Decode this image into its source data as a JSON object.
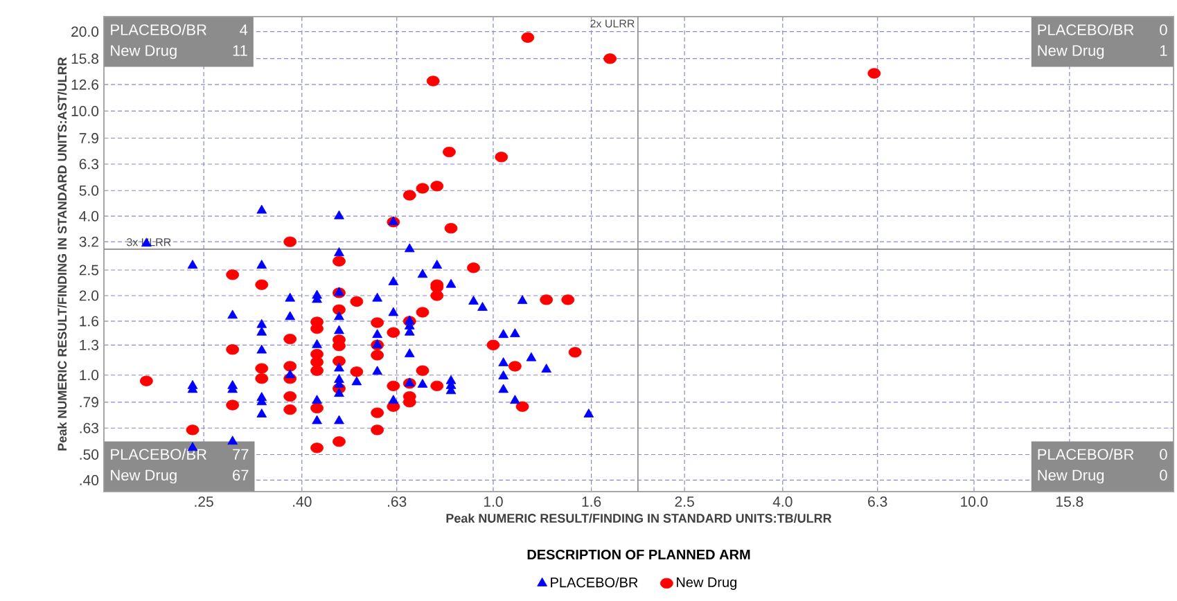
{
  "chart_data": {
    "type": "scatter",
    "xlabel": "Peak NUMERIC RESULT/FINDING IN STANDARD UNITS:TB/ULRR",
    "ylabel": "Peak NUMERIC RESULT/FINDING IN STANDARD UNITS:AST/ULRR",
    "legend_title": "DESCRIPTION OF PLANNED ARM",
    "log": "xy",
    "xlim": [
      0.155,
      26
    ],
    "ylim": [
      0.362,
      22.8
    ],
    "xticks": [
      {
        "value": 0.25,
        "label": ".25"
      },
      {
        "value": 0.4,
        "label": ".40"
      },
      {
        "value": 0.63,
        "label": ".63"
      },
      {
        "value": 1.0,
        "label": "1.0"
      },
      {
        "value": 1.6,
        "label": "1.6"
      },
      {
        "value": 2.5,
        "label": "2.5"
      },
      {
        "value": 4.0,
        "label": "4.0"
      },
      {
        "value": 6.3,
        "label": "6.3"
      },
      {
        "value": 10.0,
        "label": "10.0"
      },
      {
        "value": 15.8,
        "label": "15.8"
      }
    ],
    "yticks": [
      {
        "value": 0.4,
        "label": ".40"
      },
      {
        "value": 0.5,
        "label": ".50"
      },
      {
        "value": 0.63,
        "label": ".63"
      },
      {
        "value": 0.79,
        "label": ".79"
      },
      {
        "value": 1.0,
        "label": "1.0"
      },
      {
        "value": 1.3,
        "label": "1.3"
      },
      {
        "value": 1.6,
        "label": "1.6"
      },
      {
        "value": 2.0,
        "label": "2.0"
      },
      {
        "value": 2.5,
        "label": "2.5"
      },
      {
        "value": 3.2,
        "label": "3.2"
      },
      {
        "value": 4.0,
        "label": "4.0"
      },
      {
        "value": 5.0,
        "label": "5.0"
      },
      {
        "value": 6.3,
        "label": "6.3"
      },
      {
        "value": 7.9,
        "label": "7.9"
      },
      {
        "value": 10.0,
        "label": "10.0"
      },
      {
        "value": 12.6,
        "label": "12.6"
      },
      {
        "value": 15.8,
        "label": "15.8"
      },
      {
        "value": 20.0,
        "label": "20.0"
      }
    ],
    "grid": true,
    "legend": "bottom",
    "series": [
      {
        "name": "PLACEBO/BR",
        "color": "#0000ff",
        "marker": "triangle",
        "x": [
          0.19,
          0.237,
          0.237,
          0.237,
          0.237,
          0.287,
          0.287,
          0.287,
          0.287,
          0.33,
          0.33,
          0.33,
          0.33,
          0.33,
          0.33,
          0.33,
          0.33,
          0.378,
          0.378,
          0.378,
          0.43,
          0.43,
          0.43,
          0.43,
          0.43,
          0.478,
          0.478,
          0.478,
          0.478,
          0.478,
          0.478,
          0.478,
          0.478,
          0.478,
          0.478,
          0.52,
          0.574,
          0.574,
          0.574,
          0.574,
          0.62,
          0.62,
          0.62,
          0.62,
          0.67,
          0.67,
          0.67,
          0.67,
          0.67,
          0.67,
          0.713,
          0.713,
          0.764,
          0.817,
          0.817,
          0.817,
          0.817,
          0.91,
          0.95,
          1.05,
          1.11,
          1.15,
          1.05,
          1.05,
          1.05,
          1.11,
          1.2,
          1.29,
          1.58
        ],
        "values": [
          3.15,
          2.6,
          0.91,
          0.88,
          0.53,
          1.68,
          0.91,
          0.88,
          0.56,
          4.2,
          2.6,
          1.55,
          1.45,
          1.24,
          0.82,
          0.79,
          0.71,
          1.95,
          1.66,
          1.0,
          2.0,
          1.93,
          1.3,
          0.8,
          0.67,
          4.0,
          2.9,
          2.05,
          1.66,
          1.47,
          1.06,
          0.96,
          0.92,
          0.85,
          0.67,
          0.94,
          1.95,
          1.42,
          1.3,
          1.03,
          3.8,
          2.25,
          1.72,
          0.8,
          3.0,
          1.6,
          1.53,
          1.45,
          1.2,
          0.93,
          2.4,
          0.92,
          2.6,
          2.2,
          0.95,
          0.91,
          0.87,
          1.9,
          1.8,
          1.42,
          1.43,
          1.91,
          1.11,
          0.99,
          0.88,
          0.8,
          1.16,
          1.05,
          0.71
        ]
      },
      {
        "name": "New Drug",
        "color": "#ff0000",
        "marker": "circle",
        "x": [
          0.19,
          0.237,
          0.287,
          0.287,
          0.287,
          0.33,
          0.33,
          0.33,
          0.378,
          0.378,
          0.378,
          0.378,
          0.378,
          0.378,
          0.43,
          0.43,
          0.43,
          0.43,
          0.43,
          0.43,
          0.43,
          0.478,
          0.478,
          0.478,
          0.478,
          0.478,
          0.478,
          0.478,
          0.478,
          0.52,
          0.52,
          0.574,
          0.574,
          0.574,
          0.574,
          0.574,
          0.62,
          0.62,
          0.62,
          0.62,
          0.67,
          0.67,
          0.67,
          0.67,
          0.67,
          0.713,
          0.713,
          0.713,
          0.764,
          0.764,
          0.764,
          0.764,
          0.764,
          0.817,
          0.91,
          1.0,
          1.11,
          1.15,
          1.29,
          1.43,
          1.48,
          0.81,
          1.04,
          0.75,
          1.18,
          1.75,
          6.2
        ],
        "values": [
          0.95,
          0.62,
          2.4,
          1.25,
          0.77,
          2.2,
          1.06,
          0.97,
          3.2,
          1.37,
          1.08,
          0.97,
          0.83,
          0.74,
          1.59,
          1.5,
          1.2,
          1.12,
          1.04,
          0.75,
          0.53,
          2.7,
          2.05,
          1.77,
          1.36,
          1.29,
          1.13,
          0.89,
          0.56,
          1.9,
          1.03,
          1.58,
          1.3,
          1.19,
          0.72,
          0.62,
          3.8,
          1.45,
          0.91,
          0.76,
          4.8,
          1.6,
          0.93,
          0.83,
          0.79,
          5.1,
          1.73,
          1.04,
          5.2,
          2.2,
          2.15,
          2.0,
          0.91,
          3.6,
          2.55,
          1.3,
          1.08,
          0.76,
          1.93,
          1.93,
          1.22,
          7.0,
          6.7,
          13.0,
          19.0,
          15.8,
          13.9
        ]
      }
    ],
    "ref_lines": [
      {
        "axis": "x",
        "value": 2.0,
        "label": "2x ULRR"
      },
      {
        "axis": "y",
        "value": 3.0,
        "label": "3x ULRR"
      }
    ],
    "annotations": [
      "PLACEBO/BR",
      "4",
      "New Drug",
      "11",
      "PLACEBO/BR",
      "0",
      "New Drug",
      "1",
      "PLACEBO/BR",
      "77",
      "New Drug",
      "67",
      "PLACEBO/BR",
      "0",
      "New Drug",
      "0"
    ]
  }
}
